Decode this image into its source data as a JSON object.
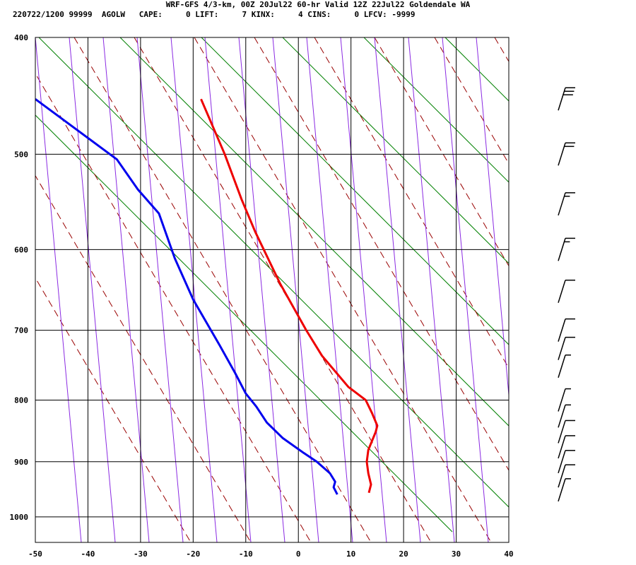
{
  "header": {
    "line1": "WRF-GFS 4/3-km, 00Z 20Jul22 60-hr Valid 12Z 22Jul22 Goldendale WA",
    "line2": "220722/1200 99999  AGOLW   CAPE:     0 LIFT:     7 KINX:     4 CINS:     0 LFCV: -9999"
  },
  "chart_data": {
    "type": "line",
    "title": "WRF-GFS 4/3-km, 00Z 20Jul22 60-hr Valid 12Z 22Jul22 Goldendale WA",
    "subtitle": "220722/1200 99999  AGOLW   CAPE:     0 LIFT:     7 KINX:     4 CINS:     0 LFCV: -9999",
    "xlabel": "",
    "ylabel": "",
    "xlim": [
      -50,
      40
    ],
    "ylim": [
      1050,
      400
    ],
    "y_scale": "log",
    "x_ticks": [
      "-50",
      "-40",
      "-30",
      "-20",
      "-10",
      "0",
      "10",
      "20",
      "30",
      "40"
    ],
    "y_ticks": [
      "400",
      "500",
      "600",
      "700",
      "800",
      "900",
      "1000"
    ],
    "grid": true,
    "series": [
      {
        "color": "#ee0000",
        "points": [
          [
            -18.5,
            450
          ],
          [
            -14,
            500
          ],
          [
            -10.8,
            545
          ],
          [
            -8.2,
            580
          ],
          [
            -3.5,
            640
          ],
          [
            1.5,
            700
          ],
          [
            4.5,
            735
          ],
          [
            9.5,
            780
          ],
          [
            12.8,
            800
          ],
          [
            14,
            820
          ],
          [
            15,
            840
          ],
          [
            14.7,
            850
          ],
          [
            13.3,
            880
          ],
          [
            13,
            900
          ],
          [
            13.3,
            920
          ],
          [
            13.8,
            940
          ],
          [
            13.4,
            955
          ]
        ]
      },
      {
        "color": "#0000ee",
        "points": [
          [
            -50,
            450
          ],
          [
            -34.5,
            505
          ],
          [
            -30.5,
            535
          ],
          [
            -26.5,
            560
          ],
          [
            -23.5,
            610
          ],
          [
            -20,
            660
          ],
          [
            -15,
            720
          ],
          [
            -12,
            760
          ],
          [
            -10,
            790
          ],
          [
            -8,
            810
          ],
          [
            -6,
            835
          ],
          [
            -3,
            860
          ],
          [
            1,
            885
          ],
          [
            3.5,
            900
          ],
          [
            6,
            920
          ],
          [
            7,
            935
          ],
          [
            6.7,
            945
          ],
          [
            7.4,
            958
          ]
        ]
      }
    ],
    "wind_barb_levels": [
      450,
      500,
      550,
      600,
      650,
      700,
      725,
      750,
      800,
      825,
      850,
      875,
      900,
      925,
      950
    ],
    "wind_barb_speeds_kt": [
      30,
      20,
      15,
      15,
      10,
      10,
      10,
      5,
      5,
      5,
      10,
      10,
      10,
      10,
      5
    ]
  }
}
